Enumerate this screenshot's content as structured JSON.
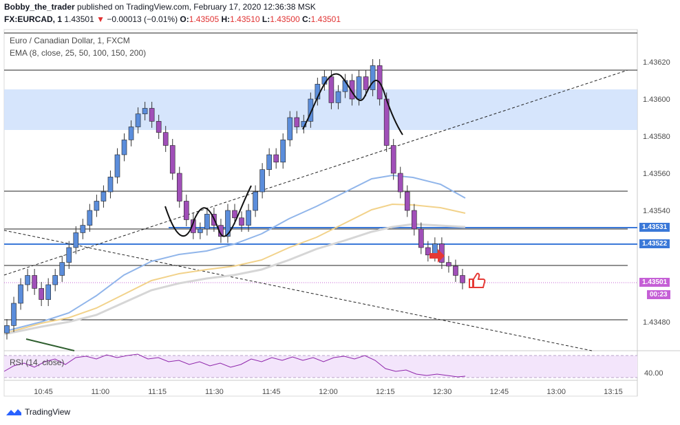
{
  "header": {
    "author": "Bobby_the_trader",
    "published": "published on TradingView.com, February 17, 2020 12:36:38 MSK",
    "symbol": "FX:EURCAD, 1",
    "last": "1.43501",
    "change_arrow": "▼",
    "change": "−0.00013 (−0.01%)",
    "o_label": "O:",
    "o": "1.43505",
    "h_label": "H:",
    "h": "1.43510",
    "l_label": "L:",
    "l": "1.43500",
    "c_label": "C:",
    "c": "1.43501"
  },
  "legend": {
    "title": "Euro / Canadian Dollar, 1, FXCM",
    "ema": "EMA (8, close, 25, 50, 100, 150, 200)",
    "rsi": "RSI (14, close)"
  },
  "price_tags": {
    "level1": "1.43531",
    "level2": "1.43522",
    "last": "1.43501",
    "countdown": "00:23",
    "rsi_tick": "40.00"
  },
  "brand": "TradingView",
  "icons": [
    "thumbs-up-icon",
    "red-arrow-icon",
    "tradingview-logo-icon"
  ],
  "colors": {
    "bull_candle": "#5b8ddb",
    "bear_candle": "#a04fb8",
    "zone": "#cfe0fb",
    "level_line": "#3a78d8",
    "ema_fast": "#90b5ea",
    "ema_mid": "#f2d28a",
    "ema_slow": "#d6d6d6",
    "rsi_line": "#8e24aa",
    "rsi_band": "#f3e5fb",
    "last_tag": "#c55fd6"
  },
  "chart_data": {
    "type": "candlestick",
    "y_ticks": [
      "1.43620",
      "1.43600",
      "1.43580",
      "1.43560",
      "1.43540",
      "1.43480"
    ],
    "x_ticks": [
      "10:45",
      "11:00",
      "11:15",
      "11:30",
      "11:45",
      "12:00",
      "12:15",
      "12:30",
      "12:45",
      "13:00",
      "13:15"
    ],
    "ylim": [
      1.4347,
      1.4363
    ],
    "closes": [
      1.43478,
      1.4349,
      1.435,
      1.43505,
      1.43498,
      1.43492,
      1.435,
      1.43505,
      1.43512,
      1.4352,
      1.43528,
      1.43532,
      1.4354,
      1.43545,
      1.4355,
      1.43558,
      1.4357,
      1.43578,
      1.43585,
      1.43592,
      1.43595,
      1.43588,
      1.43582,
      1.43575,
      1.4356,
      1.43545,
      1.43535,
      1.43528,
      1.4353,
      1.43538,
      1.43532,
      1.43526,
      1.4354,
      1.43536,
      1.43532,
      1.4354,
      1.4355,
      1.43562,
      1.4357,
      1.43566,
      1.43578,
      1.4359,
      1.43585,
      1.43588,
      1.436,
      1.43608,
      1.43612,
      1.43598,
      1.43604,
      1.4361,
      1.436,
      1.43612,
      1.43605,
      1.43618,
      1.436,
      1.43575,
      1.4356,
      1.4355,
      1.4354,
      1.4353,
      1.4352,
      1.43516,
      1.43522,
      1.43512,
      1.4351,
      1.43505,
      1.43501
    ]
  }
}
